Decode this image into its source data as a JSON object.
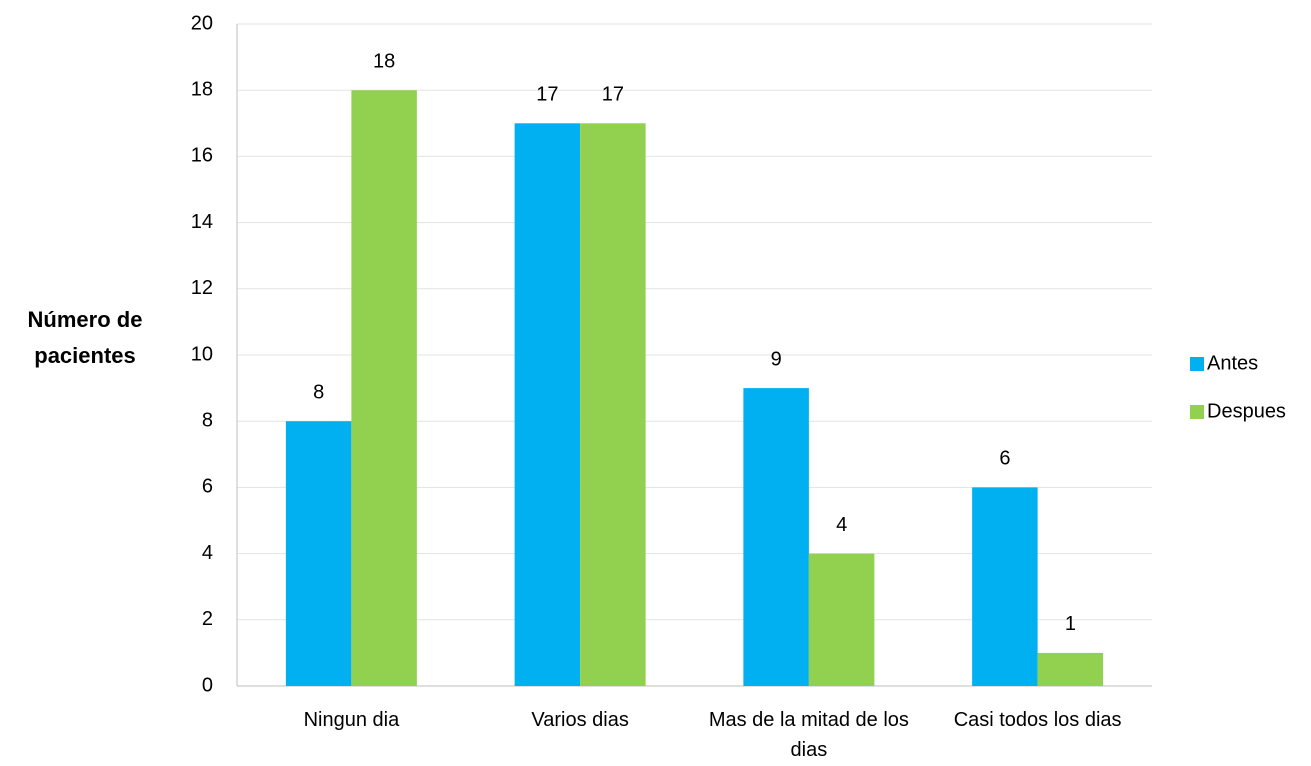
{
  "chart_data": {
    "type": "bar",
    "y_label": "Número de pacientes",
    "categories": [
      "Ningun dia",
      "Varios dias",
      "Mas de la mitad de los dias",
      "Casi todos los dias"
    ],
    "series": [
      {
        "name": "Antes",
        "color": "#00b0f0",
        "values": [
          8,
          17,
          9,
          6
        ]
      },
      {
        "name": "Despues",
        "color": "#92d050",
        "values": [
          18,
          17,
          4,
          1
        ]
      }
    ],
    "ylim": [
      0,
      20
    ],
    "yticks": [
      0,
      2,
      4,
      6,
      8,
      10,
      12,
      14,
      16,
      18,
      20
    ],
    "grid": true,
    "legend": "right"
  }
}
